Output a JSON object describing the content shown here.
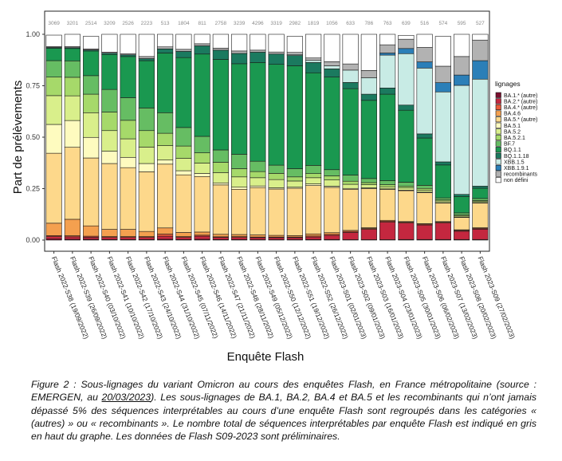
{
  "chart_data": {
    "type": "bar",
    "stacked": true,
    "ylabel": "Part de prélèvements",
    "xlabel": "Enquête Flash",
    "ylim": [
      0,
      1
    ],
    "yticks": [
      "0.00",
      "0.25",
      "0.50",
      "0.75",
      "1.00"
    ],
    "ytick_values": [
      0,
      0.25,
      0.5,
      0.75,
      1
    ],
    "categories": [
      "Flash 2022-S38 (19/09/2022)",
      "Flash 2022-S39 (26/09/2022)",
      "Flash 2022-S40 (03/10/2022)",
      "Flash 2022-S41 (10/10/2022)",
      "Flash 2022-S42 (17/10/2022)",
      "Flash 2022-S43 (24/10/2022)",
      "Flash 2022-S44 (31/10/2022)",
      "Flash 2022-S45 (07/11/2022)",
      "Flash 2022-S46 (14/11/2022)",
      "Flash 2022-S47 (21/11/2022)",
      "Flash 2022-S48 (28/11/2022)",
      "Flash 2022-S49 (05/12/2022)",
      "Flash 2022-S50 (12/12/2022)",
      "Flash 2022-S51 (19/12/2022)",
      "Flash 2022-S52 (26/12/2022)",
      "Flash 2023-S01 (02/01/2023)",
      "Flash 2023-S02 (09/01/2023)",
      "Flash 2023-S03 (16/01/2023)",
      "Flash 2023-S04 (23/01/2023)",
      "Flash 2023-S05 (30/01/2023)",
      "Flash 2023-S06 (06/02/2023)",
      "Flash 2023-S07 (13/02/2023)",
      "Flash 2023-S08 (20/02/2023)",
      "Flash 2023-S09 (27/02/2023)"
    ],
    "counts": [
      "3069",
      "3201",
      "2514",
      "3209",
      "2526",
      "2223",
      "513",
      "1804",
      "811",
      "2758",
      "3239",
      "4296",
      "3319",
      "2982",
      "1819",
      "1056",
      "633",
      "786",
      "763",
      "639",
      "516",
      "574",
      "595",
      "527"
    ],
    "legend": {
      "title": "lignages",
      "position": "right"
    },
    "series": [
      {
        "name": "BA.1.* (autre)",
        "color": "#7a0f2e",
        "values": [
          0.005,
          0.004,
          0.004,
          0.003,
          0.003,
          0.003,
          0.004,
          0.003,
          0.004,
          0.003,
          0.003,
          0.002,
          0.002,
          0.002,
          0.003,
          0.003,
          0.002,
          0.002,
          0.002,
          0.003,
          0.003,
          0.003,
          0.003,
          0.003
        ]
      },
      {
        "name": "BA.2.* (autre)",
        "color": "#c4273f",
        "values": [
          0.012,
          0.012,
          0.01,
          0.01,
          0.01,
          0.01,
          0.015,
          0.01,
          0.015,
          0.01,
          0.01,
          0.01,
          0.01,
          0.01,
          0.012,
          0.02,
          0.035,
          0.05,
          0.085,
          0.08,
          0.07,
          0.08,
          0.04,
          0.05
        ]
      },
      {
        "name": "BA.4.* (autre)",
        "color": "#ea5b3a",
        "values": [
          0.005,
          0.005,
          0.005,
          0.004,
          0.004,
          0.004,
          0.01,
          0.004,
          0.005,
          0.003,
          0.004,
          0.003,
          0.003,
          0.003,
          0.005,
          0.005,
          0.005,
          0.004,
          0.005,
          0.004,
          0.004,
          0.004,
          0.004,
          0.004
        ]
      },
      {
        "name": "BA.4.6",
        "color": "#f4a04f",
        "values": [
          0.06,
          0.08,
          0.05,
          0.035,
          0.035,
          0.025,
          0.03,
          0.02,
          0.015,
          0.012,
          0.01,
          0.01,
          0.008,
          0.007,
          0.01,
          0.008,
          0.005,
          0.004,
          0.004,
          0.003,
          0.003,
          0.003,
          0.003,
          0.003
        ]
      },
      {
        "name": "BA.5.* (autre)",
        "color": "#fdd88b",
        "values": [
          0.34,
          0.35,
          0.33,
          0.32,
          0.3,
          0.29,
          0.31,
          0.28,
          0.27,
          0.24,
          0.22,
          0.23,
          0.225,
          0.23,
          0.235,
          0.22,
          0.2,
          0.19,
          0.15,
          0.15,
          0.15,
          0.09,
          0.06,
          0.12
        ]
      },
      {
        "name": "BA.5.1",
        "color": "#fefbbf",
        "values": [
          0.14,
          0.13,
          0.1,
          0.06,
          0.05,
          0.04,
          0.02,
          0.02,
          0.015,
          0.01,
          0.01,
          0.008,
          0.006,
          0.005,
          0.008,
          0.006,
          0.004,
          0.004,
          0.003,
          0.003,
          0.003,
          0.002,
          0.002,
          0.002
        ]
      },
      {
        "name": "BA.5.2",
        "color": "#d9ef8b",
        "values": [
          0.14,
          0.12,
          0.12,
          0.1,
          0.09,
          0.08,
          0.07,
          0.06,
          0.05,
          0.05,
          0.05,
          0.04,
          0.04,
          0.03,
          0.03,
          0.03,
          0.02,
          0.015,
          0.01,
          0.01,
          0.01,
          0.008,
          0.005,
          0.005
        ]
      },
      {
        "name": "BA.5.2.1",
        "color": "#a6d96a",
        "values": [
          0.09,
          0.09,
          0.09,
          0.09,
          0.09,
          0.08,
          0.06,
          0.06,
          0.05,
          0.05,
          0.04,
          0.03,
          0.03,
          0.02,
          0.02,
          0.02,
          0.015,
          0.01,
          0.01,
          0.008,
          0.008,
          0.005,
          0.005,
          0.005
        ]
      },
      {
        "name": "BF.7",
        "color": "#66bd63",
        "values": [
          0.08,
          0.08,
          0.09,
          0.11,
          0.11,
          0.11,
          0.1,
          0.09,
          0.08,
          0.06,
          0.07,
          0.05,
          0.04,
          0.04,
          0.04,
          0.03,
          0.03,
          0.02,
          0.02,
          0.02,
          0.015,
          0.01,
          0.01,
          0.01
        ]
      },
      {
        "name": "BQ.1.1",
        "color": "#1a9850",
        "values": [
          0.06,
          0.06,
          0.12,
          0.17,
          0.2,
          0.23,
          0.29,
          0.34,
          0.4,
          0.44,
          0.44,
          0.48,
          0.49,
          0.5,
          0.45,
          0.45,
          0.42,
          0.38,
          0.42,
          0.35,
          0.23,
          0.16,
          0.08,
          0.05
        ]
      },
      {
        "name": "BQ.1.1.18",
        "color": "#1b7a5f",
        "values": [
          0.004,
          0.004,
          0.005,
          0.006,
          0.008,
          0.01,
          0.02,
          0.03,
          0.04,
          0.045,
          0.05,
          0.05,
          0.05,
          0.05,
          0.05,
          0.04,
          0.03,
          0.03,
          0.03,
          0.025,
          0.02,
          0.015,
          0.01,
          0.01
        ]
      },
      {
        "name": "XBB.1.5",
        "color": "#c8ebe5",
        "values": [
          0.0,
          0.0,
          0.0,
          0.0,
          0.0,
          0.0,
          0.0,
          0.0,
          0.0,
          0.0,
          0.0,
          0.0,
          0.0,
          0.005,
          0.01,
          0.015,
          0.06,
          0.08,
          0.16,
          0.25,
          0.32,
          0.34,
          0.53,
          0.52
        ]
      },
      {
        "name": "XBB.1.9.1",
        "color": "#2b7fb8",
        "values": [
          0.0,
          0.0,
          0.0,
          0.0,
          0.0,
          0.0,
          0.0,
          0.0,
          0.0,
          0.0,
          0.0,
          0.0,
          0.0,
          0.0,
          0.0,
          0.0,
          0.0,
          0.0,
          0.01,
          0.025,
          0.03,
          0.045,
          0.05,
          0.09
        ]
      },
      {
        "name": "recombinants",
        "color": "#b2b2b2",
        "values": [
          0.004,
          0.005,
          0.005,
          0.005,
          0.005,
          0.01,
          0.01,
          0.01,
          0.01,
          0.01,
          0.012,
          0.01,
          0.01,
          0.01,
          0.012,
          0.02,
          0.03,
          0.035,
          0.04,
          0.045,
          0.07,
          0.08,
          0.09,
          0.1
        ]
      },
      {
        "name": "non défini",
        "color": "#ffffff",
        "values": [
          0.056,
          0.06,
          0.061,
          0.087,
          0.095,
          0.108,
          0.061,
          0.073,
          0.046,
          0.067,
          0.081,
          0.077,
          0.086,
          0.078,
          0.115,
          0.133,
          0.144,
          0.176,
          0.051,
          0.019,
          0.064,
          0.145,
          0.108,
          0.028
        ]
      }
    ]
  },
  "caption": {
    "part1": "Figure 2 : Sous-lignages du variant Omicron au cours des enquêtes Flash, en France métropolitaine (source : EMERGEN, au ",
    "date": "20/03/2023",
    "part2": "). Les sous-lignages de BA.1, BA.2, BA.4 et BA.5 et les recombinants qui n’ont jamais dépassé 5% des séquences interprétables au cours d’une enquête Flash sont regroupés dans les catégories « (autres) » ou « recombinants ». Le nombre total de séquences interprétables par enquête Flash est indiqué en gris en haut du graphe. Les données de Flash S09-2023 sont préliminaires."
  }
}
